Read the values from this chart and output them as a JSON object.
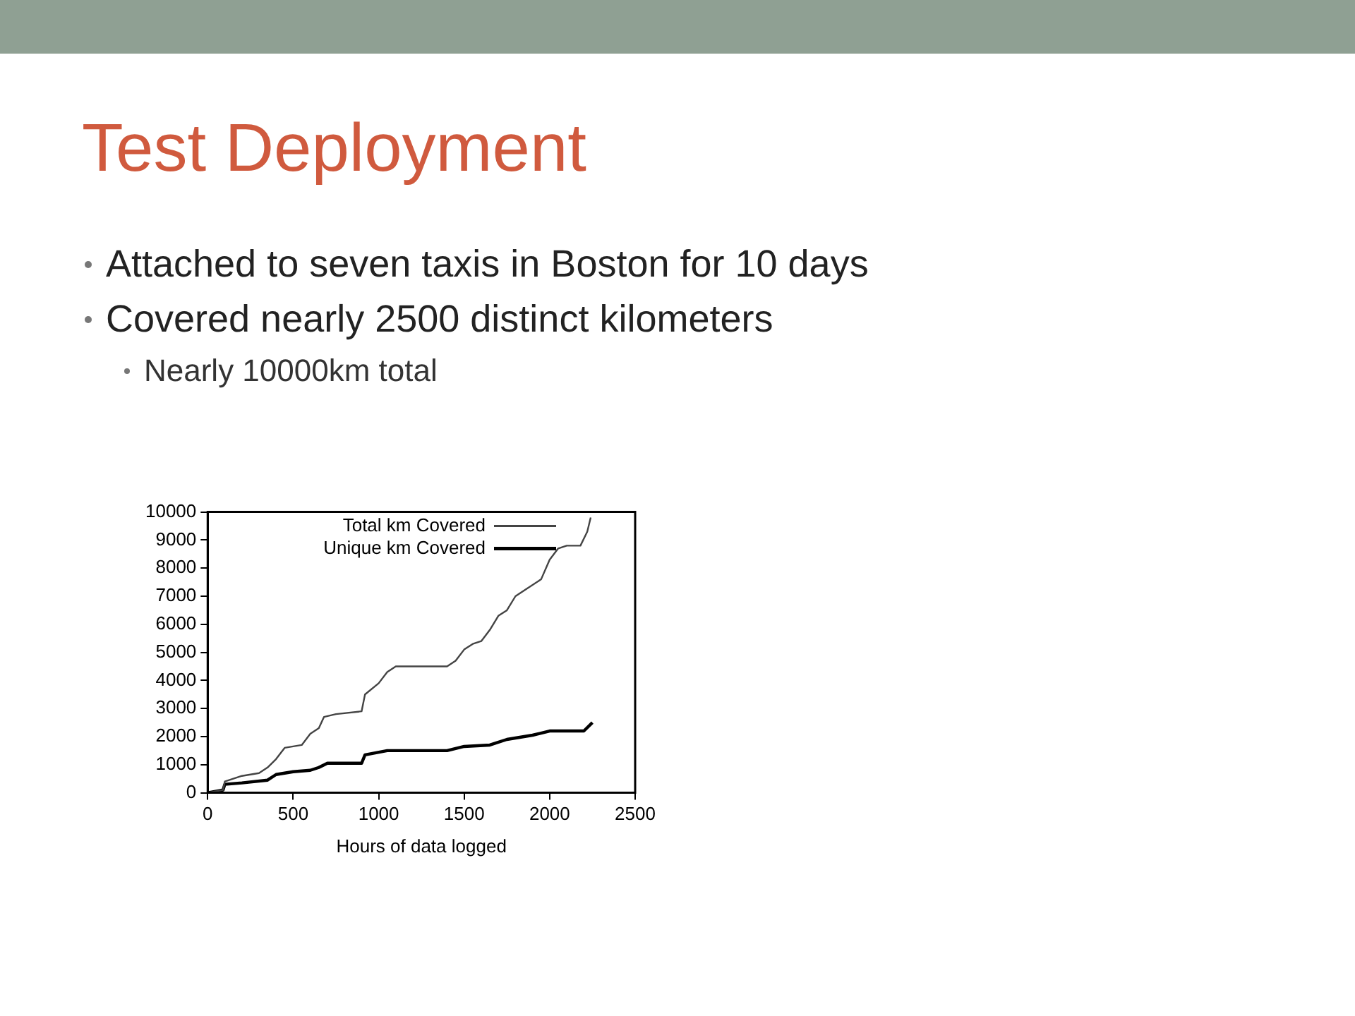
{
  "chart_data": {
    "type": "line",
    "title": "Test Deployment",
    "annotations": [
      "Attached to seven taxis in Boston for 10 days",
      "Covered nearly 2500 distinct kilometers",
      "Nearly 10000km total"
    ],
    "xlabel": "Hours of data logged",
    "xlim": [
      0,
      2500
    ],
    "xticks": [
      0,
      500,
      1000,
      1500,
      2000,
      2500
    ],
    "ylim": [
      0,
      10000
    ],
    "yticks": [
      0,
      1000,
      2000,
      3000,
      4000,
      5000,
      6000,
      7000,
      8000,
      9000,
      10000
    ],
    "grid": false,
    "legend": "top right",
    "line_style": "solid",
    "marker": "none",
    "series": [
      {
        "name": "Total km Covered",
        "color": "#444444",
        "x": [
          0,
          90,
          100,
          200,
          300,
          350,
          400,
          450,
          550,
          600,
          650,
          680,
          750,
          900,
          920,
          1000,
          1050,
          1100,
          1400,
          1450,
          1500,
          1550,
          1600,
          1650,
          1700,
          1750,
          1800,
          1850,
          1950,
          2000,
          2050,
          2100,
          2180,
          2220,
          2240
        ],
        "values": [
          0,
          100,
          400,
          600,
          700,
          900,
          1200,
          1600,
          1700,
          2100,
          2300,
          2700,
          2800,
          2900,
          3500,
          3900,
          4300,
          4500,
          4500,
          4700,
          5100,
          5300,
          5400,
          5800,
          6300,
          6500,
          7000,
          7200,
          7600,
          8300,
          8700,
          8800,
          8800,
          9300,
          9800
        ]
      },
      {
        "name": "Unique km Covered",
        "color": "#000000",
        "x": [
          0,
          90,
          100,
          200,
          350,
          400,
          500,
          600,
          650,
          700,
          900,
          920,
          1050,
          1400,
          1500,
          1650,
          1750,
          1900,
          2000,
          2200,
          2250
        ],
        "values": [
          0,
          100,
          300,
          350,
          450,
          650,
          750,
          800,
          900,
          1050,
          1050,
          1350,
          1500,
          1500,
          1650,
          1700,
          1900,
          2050,
          2200,
          2200,
          2500
        ]
      }
    ]
  }
}
